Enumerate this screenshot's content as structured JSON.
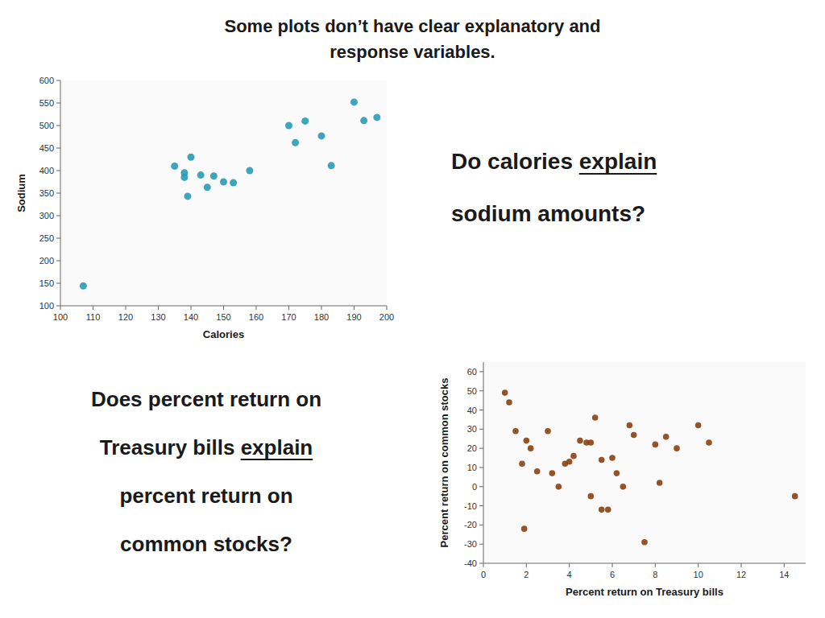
{
  "title": [
    "Some plots don’t have clear explanatory and",
    "response variables."
  ],
  "chart_data": [
    {
      "type": "scatter",
      "xlabel": "Calories",
      "ylabel": "Sodium",
      "x": [
        107,
        135,
        138,
        138,
        139,
        140,
        143,
        145,
        147,
        150,
        153,
        158,
        170,
        172,
        175,
        180,
        183,
        190,
        193,
        197
      ],
      "values": [
        144,
        410,
        395,
        385,
        343,
        430,
        390,
        363,
        388,
        375,
        373,
        400,
        500,
        462,
        510,
        477,
        411,
        552,
        511,
        518
      ],
      "color": "#2A9BB5",
      "xlim": [
        100,
        200
      ],
      "ylim": [
        100,
        600
      ],
      "xticks": [
        100,
        110,
        120,
        130,
        140,
        150,
        160,
        170,
        180,
        190,
        200
      ],
      "yticks": [
        100,
        150,
        200,
        250,
        300,
        350,
        400,
        450,
        500,
        550,
        600
      ],
      "grid": false,
      "annotations": [
        "Do calories",
        "explain",
        "sodium amounts?"
      ]
    },
    {
      "type": "scatter",
      "xlabel": "Percent return on Treasury bills",
      "ylabel": "Percent return on common stocks",
      "x": [
        1.0,
        1.2,
        1.5,
        1.8,
        1.9,
        2.0,
        2.2,
        2.5,
        3.0,
        3.2,
        3.5,
        3.8,
        4.0,
        4.2,
        4.5,
        4.8,
        5.0,
        5.0,
        5.2,
        5.5,
        5.5,
        5.8,
        6.0,
        6.2,
        6.5,
        6.8,
        7.0,
        7.5,
        8.0,
        8.2,
        8.5,
        9.0,
        10.0,
        10.5,
        14.5
      ],
      "values": [
        49,
        44,
        29,
        12,
        -22,
        24,
        20,
        8,
        29,
        7,
        0,
        12,
        13,
        16,
        24,
        23,
        23,
        -5,
        36,
        14,
        -12,
        -12,
        15,
        7,
        0,
        32,
        27,
        -29,
        22,
        2,
        26,
        20,
        32,
        23,
        -5
      ],
      "color": "#8B4010",
      "xlim": [
        0,
        15
      ],
      "ylim": [
        -40,
        65
      ],
      "xticks": [
        0,
        2,
        4,
        6,
        8,
        10,
        12,
        14
      ],
      "yticks": [
        -40,
        -30,
        -20,
        -10,
        0,
        10,
        20,
        30,
        40,
        50,
        60
      ],
      "grid": false,
      "annotations": [
        "Does percent return on",
        "Treasury bills",
        "explain",
        "percent return on",
        "common stocks?"
      ]
    }
  ]
}
